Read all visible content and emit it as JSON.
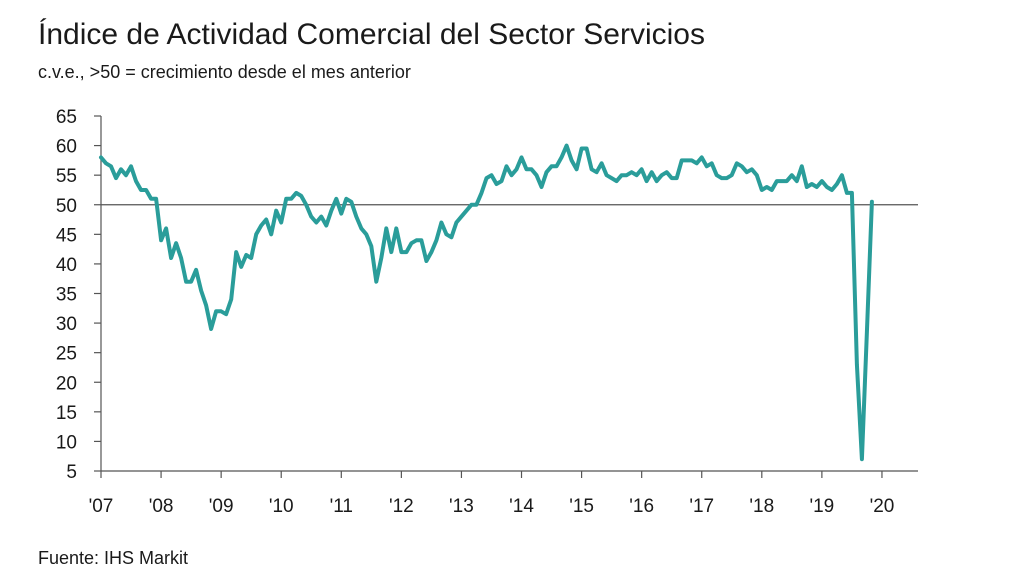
{
  "chart_data": {
    "type": "line",
    "title": "Índice de Actividad Comercial del Sector Servicios",
    "subtitle": "c.v.e., >50 = crecimiento desde el mes anterior",
    "source": "Fuente: IHS Markit",
    "xlabel": "",
    "ylabel": "",
    "ylim": [
      5,
      65
    ],
    "yticks": [
      5,
      10,
      15,
      20,
      25,
      30,
      35,
      40,
      45,
      50,
      55,
      60,
      65
    ],
    "xlim": [
      2007.0,
      2020.6
    ],
    "xticks": [
      {
        "value": 2007,
        "label": "'07"
      },
      {
        "value": 2008,
        "label": "'08"
      },
      {
        "value": 2009,
        "label": "'09"
      },
      {
        "value": 2010,
        "label": "'10"
      },
      {
        "value": 2011,
        "label": "'11"
      },
      {
        "value": 2012,
        "label": "'12"
      },
      {
        "value": 2013,
        "label": "'13"
      },
      {
        "value": 2014,
        "label": "'14"
      },
      {
        "value": 2015,
        "label": "'15"
      },
      {
        "value": 2016,
        "label": "'16"
      },
      {
        "value": 2017,
        "label": "'17"
      },
      {
        "value": 2018,
        "label": "'18"
      },
      {
        "value": 2019,
        "label": "'19"
      },
      {
        "value": 2020,
        "label": "'20"
      }
    ],
    "reference_line": 50,
    "series": [
      {
        "name": "Índice de Actividad Comercial del Sector Servicios",
        "color": "#2a9d9a",
        "start": 2007.0,
        "step": 0.08333,
        "values": [
          58.0,
          57.0,
          56.5,
          54.5,
          56.0,
          55.0,
          56.5,
          54.0,
          52.5,
          52.5,
          51.0,
          51.0,
          44.0,
          46.0,
          41.0,
          43.5,
          41.0,
          37.0,
          37.0,
          39.0,
          35.5,
          33.0,
          29.0,
          32.0,
          32.0,
          31.5,
          34.0,
          42.0,
          39.5,
          41.5,
          41.0,
          45.0,
          46.5,
          47.5,
          45.0,
          49.0,
          47.0,
          51.0,
          51.0,
          52.0,
          51.5,
          50.0,
          48.0,
          47.0,
          48.0,
          46.5,
          49.0,
          51.0,
          48.5,
          51.0,
          50.5,
          48.0,
          46.0,
          45.0,
          43.0,
          37.0,
          41.0,
          46.0,
          42.0,
          46.0,
          42.0,
          42.0,
          43.5,
          44.0,
          44.0,
          40.5,
          42.0,
          44.0,
          47.0,
          45.0,
          44.5,
          47.0,
          48.0,
          49.0,
          50.0,
          50.0,
          52.0,
          54.5,
          55.0,
          53.5,
          54.0,
          56.5,
          55.0,
          56.0,
          58.0,
          56.0,
          56.0,
          55.0,
          53.0,
          55.5,
          56.5,
          56.5,
          58.0,
          60.0,
          57.5,
          56.0,
          59.5,
          59.5,
          56.0,
          55.5,
          57.0,
          55.0,
          54.5,
          54.0,
          55.0,
          55.0,
          55.5,
          55.0,
          56.0,
          54.0,
          55.5,
          54.0,
          55.0,
          55.5,
          54.5,
          54.5,
          57.5,
          57.5,
          57.5,
          57.0,
          58.0,
          56.5,
          57.0,
          55.0,
          54.5,
          54.5,
          55.0,
          57.0,
          56.5,
          55.5,
          56.0,
          55.0,
          52.5,
          53.0,
          52.5,
          54.0,
          54.0,
          54.0,
          55.0,
          54.0,
          56.5,
          53.0,
          53.5,
          53.0,
          54.0,
          53.0,
          52.5,
          53.5,
          55.0,
          52.0,
          52.0,
          23.0,
          7.0,
          28.5,
          50.5
        ]
      }
    ]
  }
}
